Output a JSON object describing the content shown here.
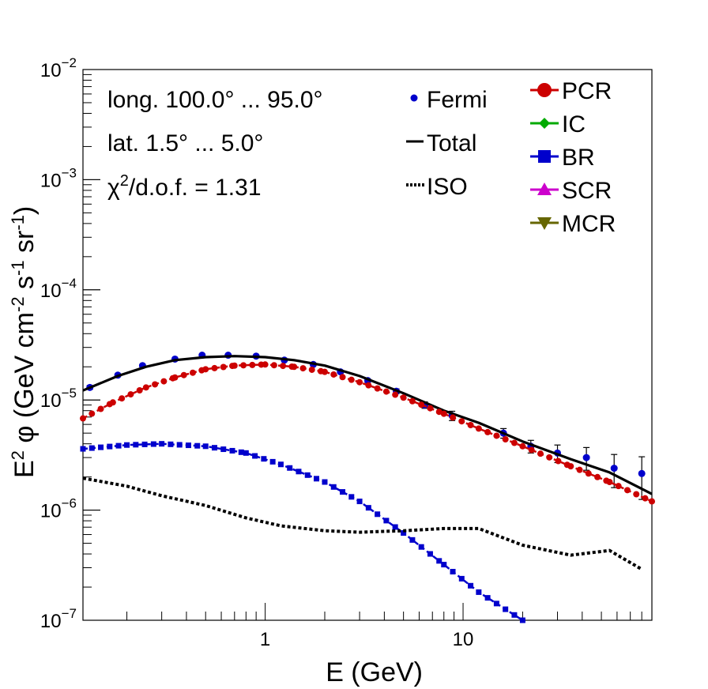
{
  "chart_data": {
    "type": "line",
    "x_scale": "log",
    "y_scale": "log",
    "xlim": [
      0.12,
      90
    ],
    "ylim": [
      1e-07,
      0.01
    ],
    "xlabel": "E (GeV)",
    "ylabel": {
      "base": "E",
      "sup1": "2",
      "phi": " φ (GeV cm",
      "sup2": "-2",
      "s": " s",
      "sup3": "-1",
      "sr": " sr",
      "sup4": "-1",
      "close": ")"
    },
    "x_tick_labels": [
      {
        "value": 1,
        "label": "1"
      },
      {
        "value": 10,
        "label": "10"
      }
    ],
    "y_tick_labels": [
      {
        "value": 1e-07,
        "base": "10",
        "exp": "−7"
      },
      {
        "value": 1e-06,
        "base": "10",
        "exp": "−6"
      },
      {
        "value": 1e-05,
        "base": "10",
        "exp": "−5"
      },
      {
        "value": 0.0001,
        "base": "10",
        "exp": "−4"
      },
      {
        "value": 0.001,
        "base": "10",
        "exp": "−3"
      },
      {
        "value": 0.01,
        "base": "10",
        "exp": "−2"
      }
    ],
    "annotations": {
      "longitude": "long. 100.0° ... 95.0°",
      "latitude": "lat. 1.5° ... 5.0°",
      "chi2_symbol": "χ",
      "chi2_sup": "2",
      "chi2_rest": "/d.o.f. = 1.31"
    },
    "legend_left": [
      {
        "name": "Fermi",
        "color": "#0000cc",
        "marker": "dot"
      },
      {
        "name": "Total",
        "color": "#000000",
        "marker": "line"
      },
      {
        "name": "ISO",
        "color": "#000000",
        "marker": "dotted"
      }
    ],
    "legend_right": [
      {
        "name": "PCR",
        "color": "#cc0000",
        "marker": "circle"
      },
      {
        "name": "IC",
        "color": "#00aa00",
        "marker": "diamond"
      },
      {
        "name": "BR",
        "color": "#0000cc",
        "marker": "square"
      },
      {
        "name": "SCR",
        "color": "#cc00cc",
        "marker": "triangle-up"
      },
      {
        "name": "MCR",
        "color": "#666600",
        "marker": "triangle-down"
      }
    ],
    "series": [
      {
        "name": "Fermi",
        "kind": "points",
        "color": "#0000cc",
        "points": [
          {
            "x": 0.13,
            "y": 1.3e-05,
            "err": 5e-07
          },
          {
            "x": 0.18,
            "y": 1.68e-05,
            "err": 5e-07
          },
          {
            "x": 0.24,
            "y": 2.05e-05,
            "err": 5e-07
          },
          {
            "x": 0.35,
            "y": 2.35e-05,
            "err": 5e-07
          },
          {
            "x": 0.48,
            "y": 2.55e-05,
            "err": 5e-07
          },
          {
            "x": 0.65,
            "y": 2.55e-05,
            "err": 5e-07
          },
          {
            "x": 0.9,
            "y": 2.5e-05,
            "err": 5e-07
          },
          {
            "x": 1.25,
            "y": 2.3e-05,
            "err": 5e-07
          },
          {
            "x": 1.75,
            "y": 2.1e-05,
            "err": 5e-07
          },
          {
            "x": 2.4,
            "y": 1.8e-05,
            "err": 5e-07
          },
          {
            "x": 3.3,
            "y": 1.5e-05,
            "err": 5e-07
          },
          {
            "x": 4.6,
            "y": 1.2e-05,
            "err": 6e-07
          },
          {
            "x": 6.4,
            "y": 9e-06,
            "err": 6e-07
          },
          {
            "x": 8.8,
            "y": 7.2e-06,
            "err": 7e-07
          },
          {
            "x": 16,
            "y": 5e-06,
            "err": 5e-07
          },
          {
            "x": 22,
            "y": 3.8e-06,
            "err": 5e-07
          },
          {
            "x": 30,
            "y": 3.3e-06,
            "err": 6e-07
          },
          {
            "x": 42,
            "y": 3e-06,
            "err": 7e-07
          },
          {
            "x": 58,
            "y": 2.4e-06,
            "err": 8e-07
          },
          {
            "x": 80,
            "y": 2.15e-06,
            "err": 9e-07
          }
        ]
      },
      {
        "name": "Total",
        "kind": "line",
        "color": "#000000",
        "points": [
          {
            "x": 0.12,
            "y": 1.22e-05
          },
          {
            "x": 0.18,
            "y": 1.65e-05
          },
          {
            "x": 0.25,
            "y": 2e-05
          },
          {
            "x": 0.35,
            "y": 2.3e-05
          },
          {
            "x": 0.5,
            "y": 2.45e-05
          },
          {
            "x": 0.7,
            "y": 2.5e-05
          },
          {
            "x": 1.0,
            "y": 2.45e-05
          },
          {
            "x": 1.4,
            "y": 2.3e-05
          },
          {
            "x": 2.0,
            "y": 2.05e-05
          },
          {
            "x": 3.0,
            "y": 1.65e-05
          },
          {
            "x": 5.0,
            "y": 1.15e-05
          },
          {
            "x": 8.0,
            "y": 8e-06
          },
          {
            "x": 12,
            "y": 6.2e-06
          },
          {
            "x": 20,
            "y": 4.2e-06
          },
          {
            "x": 35,
            "y": 2.9e-06
          },
          {
            "x": 55,
            "y": 2.2e-06
          },
          {
            "x": 90,
            "y": 1.4e-06
          }
        ]
      },
      {
        "name": "PCR",
        "kind": "markers",
        "color": "#cc0000",
        "points": [
          {
            "x": 0.12,
            "y": 6.8e-06
          },
          {
            "x": 0.17,
            "y": 9.5e-06
          },
          {
            "x": 0.25,
            "y": 1.3e-05
          },
          {
            "x": 0.35,
            "y": 1.6e-05
          },
          {
            "x": 0.5,
            "y": 1.9e-05
          },
          {
            "x": 0.7,
            "y": 2.05e-05
          },
          {
            "x": 1.0,
            "y": 2.1e-05
          },
          {
            "x": 1.4,
            "y": 2e-05
          },
          {
            "x": 2.0,
            "y": 1.8e-05
          },
          {
            "x": 3.0,
            "y": 1.45e-05
          },
          {
            "x": 5.0,
            "y": 1.05e-05
          },
          {
            "x": 8.0,
            "y": 7.5e-06
          },
          {
            "x": 12,
            "y": 5.5e-06
          },
          {
            "x": 20,
            "y": 3.8e-06
          },
          {
            "x": 35,
            "y": 2.5e-06
          },
          {
            "x": 55,
            "y": 1.8e-06
          },
          {
            "x": 90,
            "y": 1.2e-06
          }
        ]
      },
      {
        "name": "BR",
        "kind": "markers",
        "color": "#0000cc",
        "points": [
          {
            "x": 0.12,
            "y": 3.6e-06
          },
          {
            "x": 0.2,
            "y": 3.9e-06
          },
          {
            "x": 0.3,
            "y": 4e-06
          },
          {
            "x": 0.5,
            "y": 3.8e-06
          },
          {
            "x": 0.8,
            "y": 3.3e-06
          },
          {
            "x": 1.2,
            "y": 2.6e-06
          },
          {
            "x": 2.0,
            "y": 1.8e-06
          },
          {
            "x": 3.0,
            "y": 1.2e-06
          },
          {
            "x": 5.0,
            "y": 6.2e-07
          },
          {
            "x": 8.0,
            "y": 3.2e-07
          },
          {
            "x": 12,
            "y": 1.8e-07
          },
          {
            "x": 20,
            "y": 1e-07
          }
        ]
      },
      {
        "name": "ISO",
        "kind": "dotted",
        "color": "#000000",
        "points": [
          {
            "x": 0.12,
            "y": 1.95e-06
          },
          {
            "x": 0.2,
            "y": 1.65e-06
          },
          {
            "x": 0.3,
            "y": 1.35e-06
          },
          {
            "x": 0.5,
            "y": 1.1e-06
          },
          {
            "x": 0.8,
            "y": 8.5e-07
          },
          {
            "x": 1.2,
            "y": 7.2e-07
          },
          {
            "x": 2.0,
            "y": 6.5e-07
          },
          {
            "x": 3.0,
            "y": 6.3e-07
          },
          {
            "x": 5.0,
            "y": 6.5e-07
          },
          {
            "x": 8.0,
            "y": 6.8e-07
          },
          {
            "x": 12,
            "y": 6.8e-07
          },
          {
            "x": 20,
            "y": 4.8e-07
          },
          {
            "x": 35,
            "y": 3.9e-07
          },
          {
            "x": 55,
            "y": 4.3e-07
          },
          {
            "x": 80,
            "y": 2.9e-07
          }
        ]
      }
    ]
  }
}
